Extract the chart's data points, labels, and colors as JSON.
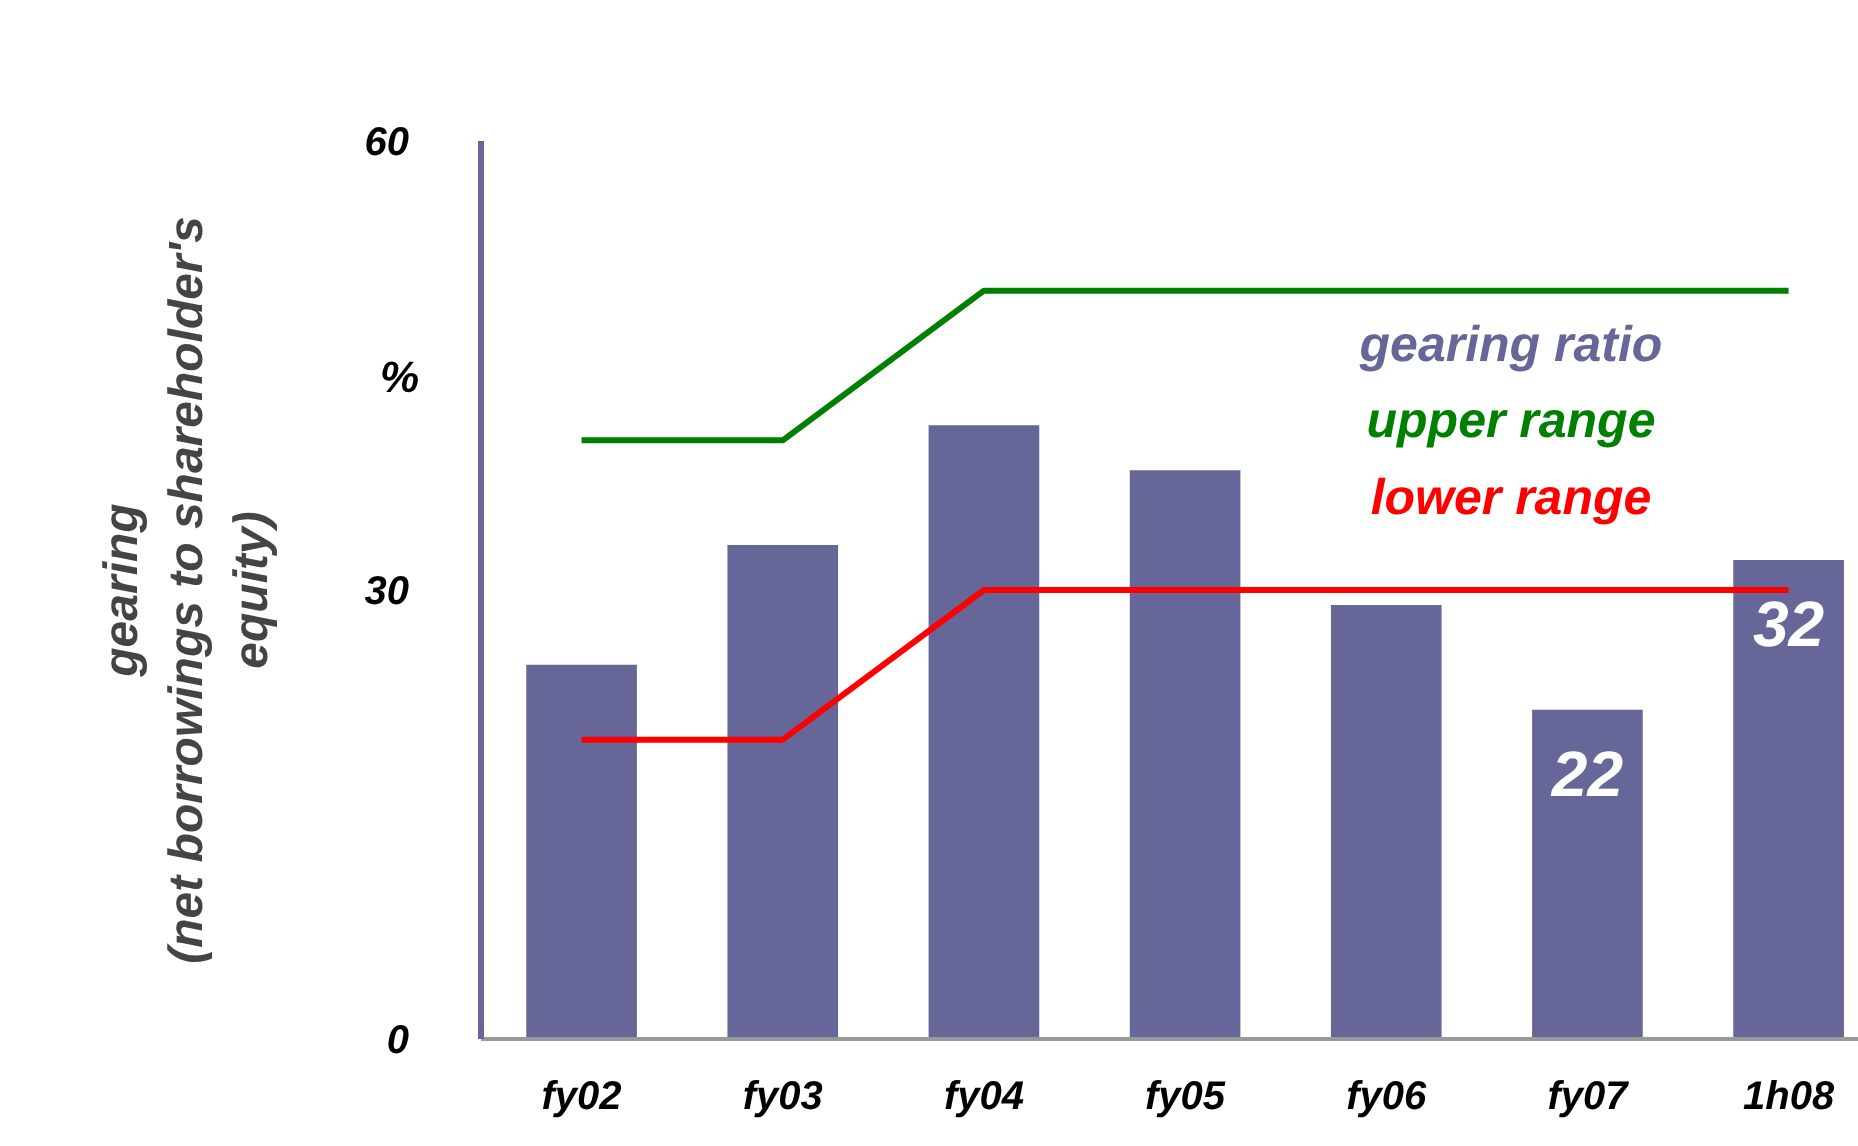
{
  "chart_data": {
    "type": "bar",
    "ylabel": "gearing\n(net borrowings to shareholder's\nequity)",
    "categories": [
      "fy02",
      "fy03",
      "fy04",
      "fy05",
      "fy06",
      "fy07",
      "1h08"
    ],
    "series": [
      {
        "name": "gearing ratio",
        "color": "#666699",
        "values": [
          25,
          33,
          41,
          38,
          29,
          22,
          32
        ],
        "value_labels": [
          null,
          null,
          null,
          null,
          null,
          "22",
          "32"
        ]
      },
      {
        "name": "upper range",
        "type": "line",
        "color": "#008000",
        "values": [
          40,
          40,
          50,
          50,
          50,
          50,
          50
        ]
      },
      {
        "name": "lower range",
        "type": "line",
        "color": "#ff0000",
        "values": [
          20,
          20,
          30,
          30,
          30,
          30,
          30
        ]
      }
    ],
    "annotations": [
      "%"
    ],
    "ylim": [
      0,
      60
    ],
    "yticks": [
      0,
      30,
      60
    ],
    "grid": false,
    "legend": "top right"
  }
}
